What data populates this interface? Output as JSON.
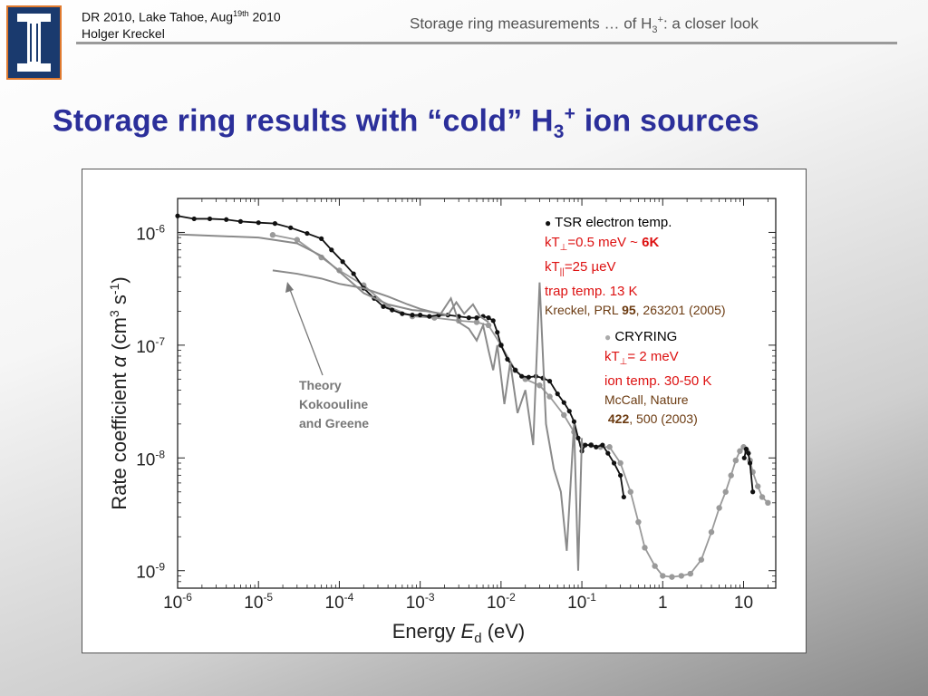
{
  "header": {
    "conf_line": "DR 2010, Lake Tahoe, Aug",
    "conf_sup": "19th",
    "conf_year": " 2010",
    "author": "Holger Kreckel",
    "right_title_a": "Storage ring measurements … of H",
    "right_title_sub": "3",
    "right_title_sup": "+",
    "right_title_b": ": a closer look"
  },
  "slide": {
    "title_a": "Storage ring results with “cold” H",
    "title_sub": "3",
    "title_sup": "+",
    "title_b": " ion sources"
  },
  "legend_tsr": {
    "marker": "●",
    "label": " TSR electron temp.",
    "line1_a": "kT",
    "line1_sub": "⊥",
    "line1_b": "=0.5 meV ~ ",
    "line1_bold": "6K",
    "line2_a": "kT",
    "line2_sub": "||",
    "line2_b": "=25 µeV",
    "line3": "trap temp. 13 K",
    "ref_a": "Kreckel, PRL ",
    "ref_bold": "95",
    "ref_b": ", 263201 (2005)"
  },
  "legend_cry": {
    "marker": "●",
    "label": " CRYRING",
    "line1_a": "kT",
    "line1_sub": "⊥",
    "line1_b": "= 2 meV",
    "line2": "ion temp. 30-50 K",
    "ref1": "McCall, Nature",
    "ref_bold": "422",
    "ref_b": ", 500 (2003)"
  },
  "theory_label": [
    "Theory",
    "Kokoouline",
    "and Greene"
  ],
  "chart_data": {
    "type": "scatter",
    "xscale": "log",
    "yscale": "log",
    "xlim": [
      1e-06,
      25
    ],
    "ylim": [
      7e-10,
      2e-06
    ],
    "xlabel_a": "Energy ",
    "xlabel_var": "E",
    "xlabel_sub": "d",
    "xlabel_b": " (eV)",
    "ylabel_a": "Rate coefficient ",
    "ylabel_var": "α",
    "ylabel_b": " (cm",
    "ylabel_sup1": "3",
    "ylabel_c": " s",
    "ylabel_sup2": "-1",
    "ylabel_d": ")",
    "x_ticks": [
      {
        "v": 1e-06,
        "base": "10",
        "exp": "-6"
      },
      {
        "v": 1e-05,
        "base": "10",
        "exp": "-5"
      },
      {
        "v": 0.0001,
        "base": "10",
        "exp": "-4"
      },
      {
        "v": 0.001,
        "base": "10",
        "exp": "-3"
      },
      {
        "v": 0.01,
        "base": "10",
        "exp": "-2"
      },
      {
        "v": 0.1,
        "base": "10",
        "exp": "-1"
      },
      {
        "v": 1,
        "base": "1",
        "exp": ""
      },
      {
        "v": 10,
        "base": "10",
        "exp": ""
      }
    ],
    "y_ticks": [
      {
        "v": 1e-06,
        "base": "10",
        "exp": "-6"
      },
      {
        "v": 1e-07,
        "base": "10",
        "exp": "-7"
      },
      {
        "v": 1e-08,
        "base": "10",
        "exp": "-8"
      },
      {
        "v": 1e-09,
        "base": "10",
        "exp": "-9"
      }
    ],
    "series": [
      {
        "color": "#9a9a9a",
        "kind": "points",
        "x": [
          1.5e-05,
          3e-05,
          6e-05,
          0.0001,
          0.0002,
          0.0004,
          0.0008,
          0.0015,
          0.003,
          0.005,
          0.007,
          0.01,
          0.015,
          0.02,
          0.03,
          0.04,
          0.06,
          0.08,
          0.1,
          0.13,
          0.17,
          0.22,
          0.3,
          0.4,
          0.5,
          0.6,
          0.8,
          1,
          1.3,
          1.7,
          2.2,
          3,
          4,
          5,
          6,
          7,
          8,
          9,
          10,
          11,
          12,
          13,
          15,
          17,
          20
        ],
        "y": [
          9.5e-07,
          8.6e-07,
          6e-07,
          4.6e-07,
          3.4e-07,
          2.2e-07,
          1.8e-07,
          1.75e-07,
          1.65e-07,
          1.6e-07,
          1.5e-07,
          1e-07,
          6e-08,
          5e-08,
          4.4e-08,
          3.5e-08,
          2.4e-08,
          1.7e-08,
          1.3e-08,
          1.3e-08,
          1.25e-08,
          1.25e-08,
          9e-09,
          5e-09,
          2.7e-09,
          1.6e-09,
          1.1e-09,
          9e-10,
          8.8e-10,
          9e-10,
          9.4e-10,
          1.25e-09,
          2.2e-09,
          3.6e-09,
          5e-09,
          7e-09,
          9.5e-09,
          1.15e-08,
          1.25e-08,
          1.15e-08,
          9.5e-09,
          7.5e-09,
          5.6e-09,
          4.5e-09,
          4e-09
        ]
      },
      {
        "color": "#111111",
        "kind": "points",
        "x": [
          1e-06,
          1.6e-06,
          2.5e-06,
          4e-06,
          6e-06,
          1e-05,
          1.6e-05,
          2.5e-05,
          4e-05,
          6e-05,
          8e-05,
          0.00011,
          0.00015,
          0.0002,
          0.00027,
          0.00035,
          0.00045,
          0.0006,
          0.0008,
          0.001,
          0.0013,
          0.0017,
          0.0022,
          0.003,
          0.004,
          0.005,
          0.006,
          0.007,
          0.008,
          0.009,
          0.01,
          0.012,
          0.015,
          0.018,
          0.022,
          0.027,
          0.033,
          0.04,
          0.05,
          0.06,
          0.07,
          0.08,
          0.09,
          0.1,
          0.11,
          0.13,
          0.15,
          0.18,
          0.21,
          0.25,
          0.3,
          0.33
        ],
        "y": [
          1.4e-06,
          1.32e-06,
          1.32e-06,
          1.3e-06,
          1.25e-06,
          1.22e-06,
          1.2e-06,
          1.1e-06,
          9.8e-07,
          8.8e-07,
          7e-07,
          5.5e-07,
          4.3e-07,
          3.2e-07,
          2.6e-07,
          2.2e-07,
          2.05e-07,
          1.9e-07,
          1.85e-07,
          1.85e-07,
          1.8e-07,
          1.85e-07,
          1.85e-07,
          1.8e-07,
          1.75e-07,
          1.75e-07,
          1.8e-07,
          1.75e-07,
          1.65e-07,
          1.3e-07,
          1e-07,
          7.5e-08,
          6e-08,
          5.3e-08,
          5.2e-08,
          5.3e-08,
          5.1e-08,
          4.8e-08,
          3.7e-08,
          3.1e-08,
          2.6e-08,
          2.1e-08,
          1.5e-08,
          1.15e-08,
          1.3e-08,
          1.3e-08,
          1.25e-08,
          1.3e-08,
          1.1e-08,
          9e-09,
          7e-09,
          4.5e-09
        ]
      },
      {
        "color": "#111111",
        "kind": "points",
        "x": [
          0.006,
          0.007,
          0.0075,
          0.008,
          0.0085,
          0.009,
          0.0095,
          10.2,
          10.8,
          11.5,
          12,
          13
        ],
        "y": [
          0,
          0,
          0,
          0,
          0,
          0,
          0,
          1e-08,
          1.2e-08,
          1.1e-08,
          9e-09,
          5e-09
        ]
      },
      {
        "color": "#8a8a8a",
        "kind": "line",
        "x": [
          1e-06,
          1e-05,
          3e-05,
          6e-05,
          0.0001,
          0.0002,
          0.0004,
          0.0008,
          0.0012,
          0.0018,
          0.0024,
          0.003,
          0.004,
          0.005,
          0.006,
          0.007,
          0.008,
          0.009,
          0.011,
          0.013,
          0.016,
          0.02,
          0.025,
          0.03,
          0.036,
          0.045,
          0.055,
          0.065,
          0.08,
          0.09,
          0.1
        ],
        "y": [
          9.6e-07,
          9e-07,
          8e-07,
          6.2e-07,
          4.5e-07,
          2.9e-07,
          2.3e-07,
          2.05e-07,
          2e-07,
          1.9e-07,
          2.6e-07,
          1.6e-07,
          1.4e-07,
          1.1e-07,
          1.5e-07,
          9e-08,
          6e-08,
          1e-07,
          3e-08,
          7e-08,
          2.5e-08,
          4e-08,
          1.3e-08,
          3.6e-07,
          2e-08,
          8e-09,
          5e-09,
          1.5e-09,
          2e-08,
          1e-09,
          1.5e-08
        ]
      },
      {
        "color": "#8a8a8a",
        "kind": "line",
        "x": [
          1.5e-05,
          3e-05,
          6e-05,
          0.0001,
          0.0002,
          0.0004,
          0.0007,
          0.001,
          0.0015,
          0.0022,
          0.0028,
          0.0035,
          0.0045,
          0.0055,
          0.007
        ],
        "y": [
          4.6e-07,
          4.3e-07,
          3.9e-07,
          3.5e-07,
          3.2e-07,
          2.7e-07,
          2.3e-07,
          2.1e-07,
          1.95e-07,
          1.85e-07,
          2.4e-07,
          1.9e-07,
          2.3e-07,
          1.8e-07,
          1.6e-07
        ]
      }
    ]
  }
}
